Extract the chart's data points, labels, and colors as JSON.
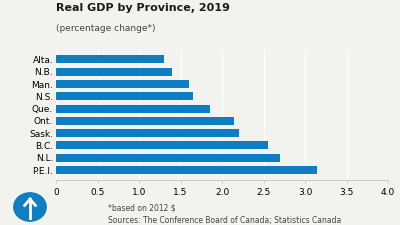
{
  "title": "Real GDP by Province, 2019",
  "subtitle": "(percentage change*)",
  "provinces": [
    "Alta.",
    "N.B.",
    "Man.",
    "N.S.",
    "Que.",
    "Ont.",
    "Sask.",
    "B.C.",
    "N.L.",
    "P.E.I."
  ],
  "values": [
    1.3,
    1.4,
    1.6,
    1.65,
    1.85,
    2.15,
    2.2,
    2.55,
    2.7,
    3.15
  ],
  "bar_color": "#0e7dc2",
  "xlim": [
    0,
    4.0
  ],
  "xticks": [
    0,
    0.5,
    1.0,
    1.5,
    2.0,
    2.5,
    3.0,
    3.5,
    4.0
  ],
  "xtick_labels": [
    "0",
    "0.5",
    "1.0",
    "1.5",
    "2.0",
    "2.5",
    "3.0",
    "3.5",
    "4.0"
  ],
  "footnote1": "*based on 2012 $",
  "footnote2": "Sources: The Conference Board of Canada; Statistics Canada",
  "bg_color": "#f2f2ee",
  "title_fontsize": 8.0,
  "subtitle_fontsize": 6.5,
  "tick_fontsize": 6.5,
  "footnote_fontsize": 5.5
}
